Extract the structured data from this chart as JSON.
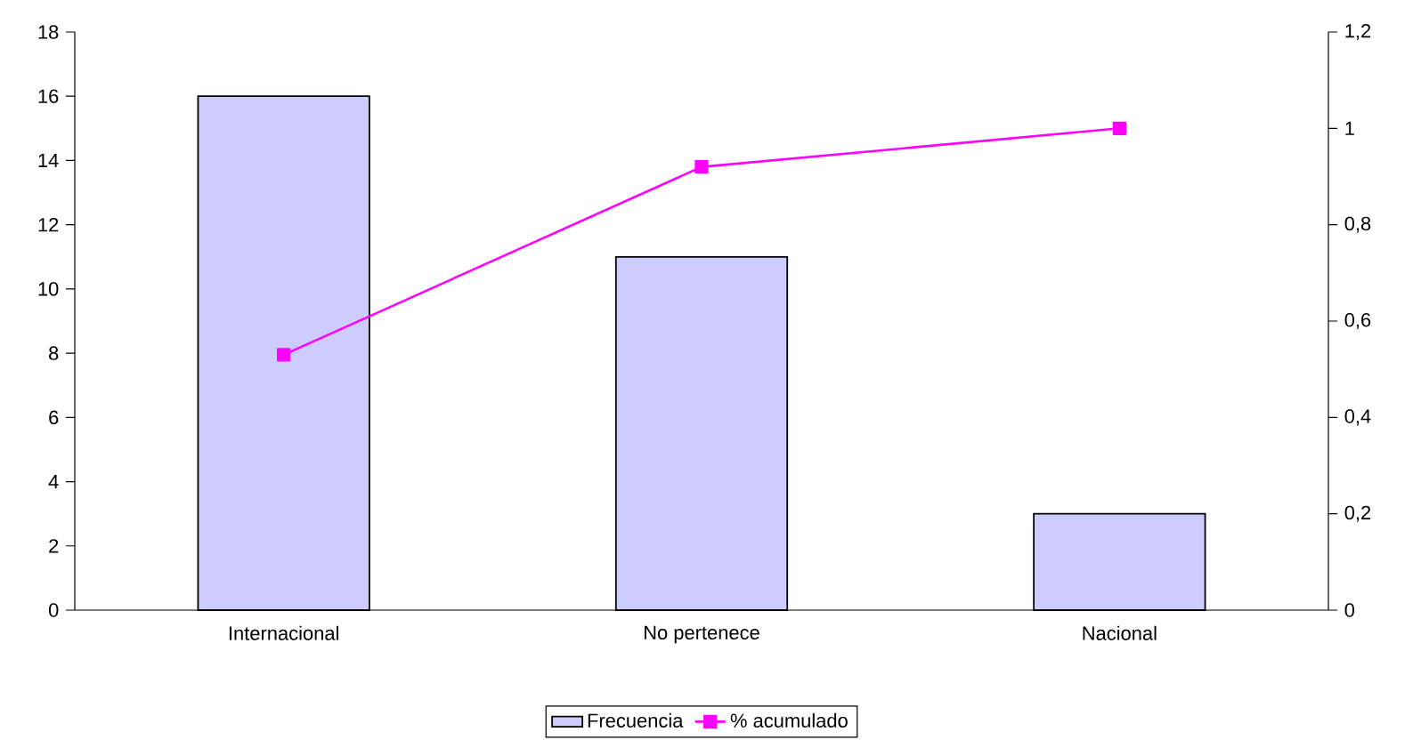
{
  "chart_data": {
    "type": "bar",
    "categories": [
      "Internacional",
      "No pertenece",
      "Nacional"
    ],
    "series": [
      {
        "name": "Frecuencia",
        "color": "#ccccff",
        "values": [
          16,
          11,
          3
        ]
      },
      {
        "name": "% acumulado",
        "type": "line",
        "axis": "y2",
        "color": "#ff00ff",
        "values": [
          0.53,
          0.92,
          1.0
        ]
      }
    ],
    "ylim": [
      0,
      18
    ],
    "yticks": [
      0,
      2,
      4,
      6,
      8,
      10,
      12,
      14,
      16,
      18
    ],
    "y2lim": [
      0,
      1.2
    ],
    "y2ticks": [
      0,
      {
        "value": 0.2,
        "label": "0,2"
      },
      {
        "value": 0.4,
        "label": "0,4"
      },
      {
        "value": 0.6,
        "label": "0,6"
      },
      {
        "value": 0.8,
        "label": "0,8"
      },
      1,
      {
        "value": 1.2,
        "label": "1,2"
      }
    ],
    "marker": "square",
    "legend": "bottom",
    "grid": false
  }
}
